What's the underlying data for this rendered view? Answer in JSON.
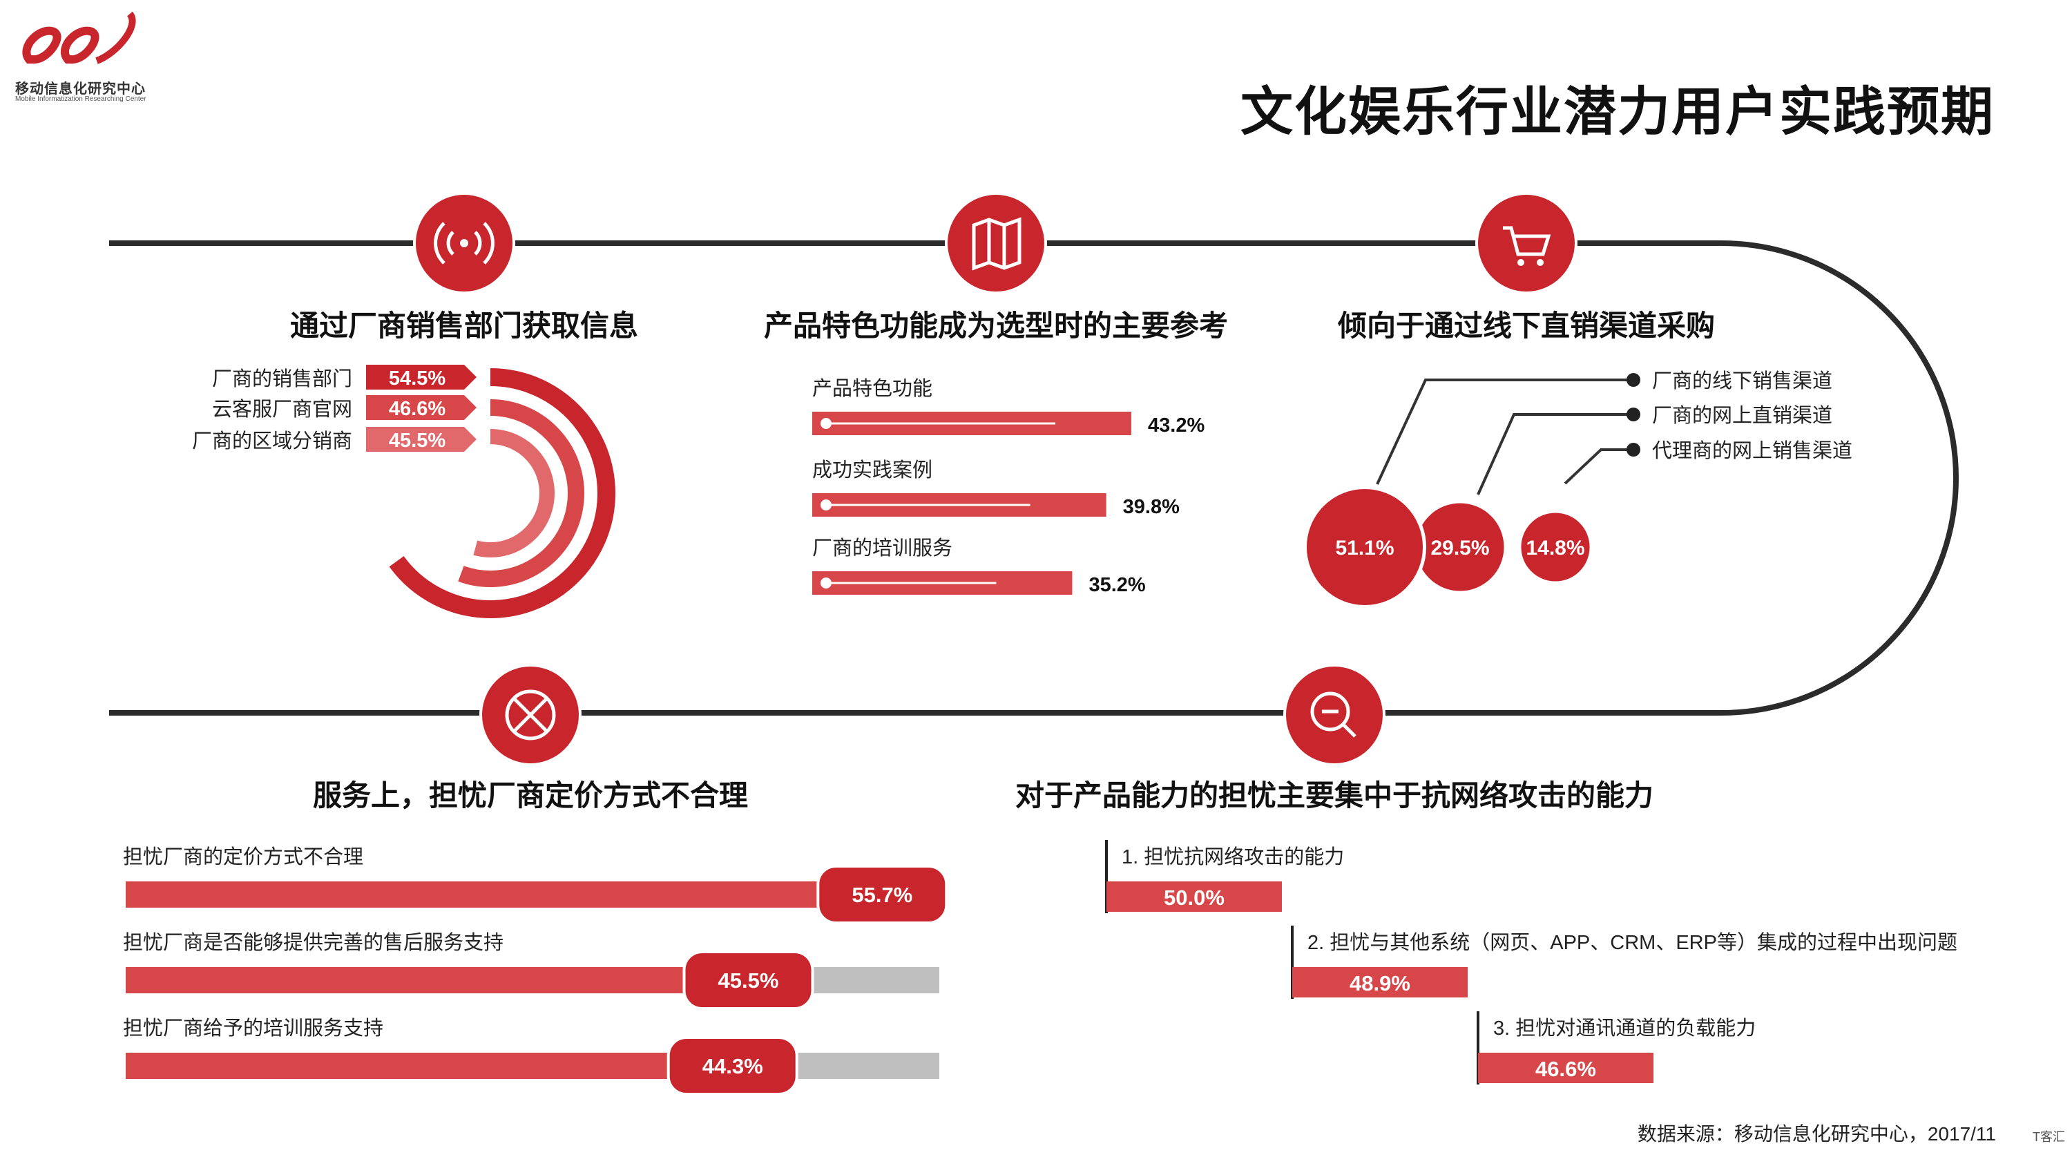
{
  "header": {
    "logo_text": "移动信息化研究中心",
    "logo_sub": "Mobile Informatization Researching Center",
    "title": "文化娱乐行业潜力用户实践预期"
  },
  "footer": {
    "source": "数据来源：移动信息化研究中心，2017/11",
    "watermark": "T客汇"
  },
  "icons": [
    "signal-icon",
    "map-icon",
    "cart-icon",
    "network-icon",
    "search-icon"
  ],
  "colors": {
    "accent": "#c9252c",
    "accent_mid": "#d7474a",
    "accent_light": "#e2696b",
    "track": "#bfbfbf",
    "line": "#2b2b2b"
  },
  "chart_data": [
    {
      "id": "vendor_info",
      "type": "bar",
      "title": "通过厂商销售部门获取信息",
      "categories": [
        "厂商的销售部门",
        "云客服厂商官网",
        "厂商的区域分销商"
      ],
      "values": [
        54.5,
        46.6,
        45.5
      ],
      "labels": [
        "54.5%",
        "46.6%",
        "45.5%"
      ]
    },
    {
      "id": "feature_ref",
      "type": "bar",
      "title": "产品特色功能成为选型时的主要参考",
      "categories": [
        "产品特色功能",
        "成功实践案例",
        "厂商的培训服务"
      ],
      "values": [
        43.2,
        39.8,
        35.2
      ],
      "labels": [
        "43.2%",
        "39.8%",
        "35.2%"
      ]
    },
    {
      "id": "channel",
      "type": "scatter",
      "title": "倾向于通过线下直销渠道采购",
      "categories": [
        "厂商的线下销售渠道",
        "厂商的网上直销渠道",
        "代理商的网上销售渠道"
      ],
      "values": [
        51.1,
        29.5,
        14.8
      ],
      "labels": [
        "51.1%",
        "29.5%",
        "14.8%"
      ]
    },
    {
      "id": "pricing",
      "type": "bar",
      "title": "服务上，担忧厂商定价方式不合理",
      "categories": [
        "担忧厂商的定价方式不合理",
        "担忧厂商是否能够提供完善的售后服务支持",
        "担忧厂商给予的培训服务支持"
      ],
      "values": [
        55.7,
        45.5,
        44.3
      ],
      "labels": [
        "55.7%",
        "45.5%",
        "44.3%"
      ]
    },
    {
      "id": "capability",
      "type": "bar",
      "title": "对于产品能力的担忧主要集中于抗网络攻击的能力",
      "categories": [
        "1. 担忧抗网络攻击的能力",
        "2. 担忧与其他系统（网页、APP、CRM、ERP等）集成的过程中出现问题",
        "3. 担忧对通讯通道的负载能力"
      ],
      "values": [
        50.0,
        48.9,
        46.6
      ],
      "labels": [
        "50.0%",
        "48.9%",
        "46.6%"
      ]
    }
  ]
}
